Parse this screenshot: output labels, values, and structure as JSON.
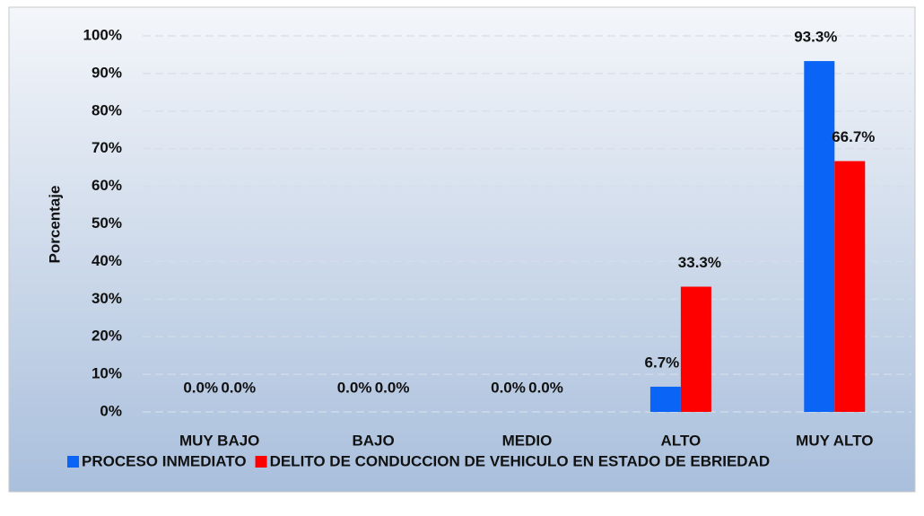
{
  "chart_data": {
    "type": "bar",
    "categories": [
      "MUY BAJO",
      "BAJO",
      "MEDIO",
      "ALTO",
      "MUY ALTO"
    ],
    "y_axis_label": "Porcentaje",
    "series": [
      {
        "name": "PROCESO INMEDIATO",
        "color": "#0a64f5",
        "values": [
          0,
          0,
          0,
          6.7,
          93.3
        ],
        "value_labels": [
          "0.0%",
          "0.0%",
          "0.0%",
          "6.7%",
          "93.3%"
        ]
      },
      {
        "name": "DELITO DE CONDUCCION DE VEHICULO EN ESTADO DE EBRIEDAD",
        "color": "#ff0000",
        "values": [
          0,
          0,
          0,
          33.3,
          66.7
        ],
        "value_labels": [
          "0.0%",
          "0.0%",
          "0.0%",
          "33.3%",
          "66.7%"
        ]
      }
    ],
    "ylim": [
      0,
      100
    ],
    "yticks": [
      {
        "value": 0,
        "label": "0%"
      },
      {
        "value": 10,
        "label": "10%"
      },
      {
        "value": 20,
        "label": "20%"
      },
      {
        "value": 30,
        "label": "30%"
      },
      {
        "value": 40,
        "label": "40%"
      },
      {
        "value": 50,
        "label": "50%"
      },
      {
        "value": 60,
        "label": "60%"
      },
      {
        "value": 70,
        "label": "70%"
      },
      {
        "value": 80,
        "label": "80%"
      },
      {
        "value": 90,
        "label": "90%"
      },
      {
        "value": 100,
        "label": "100%"
      }
    ],
    "grid": true
  }
}
